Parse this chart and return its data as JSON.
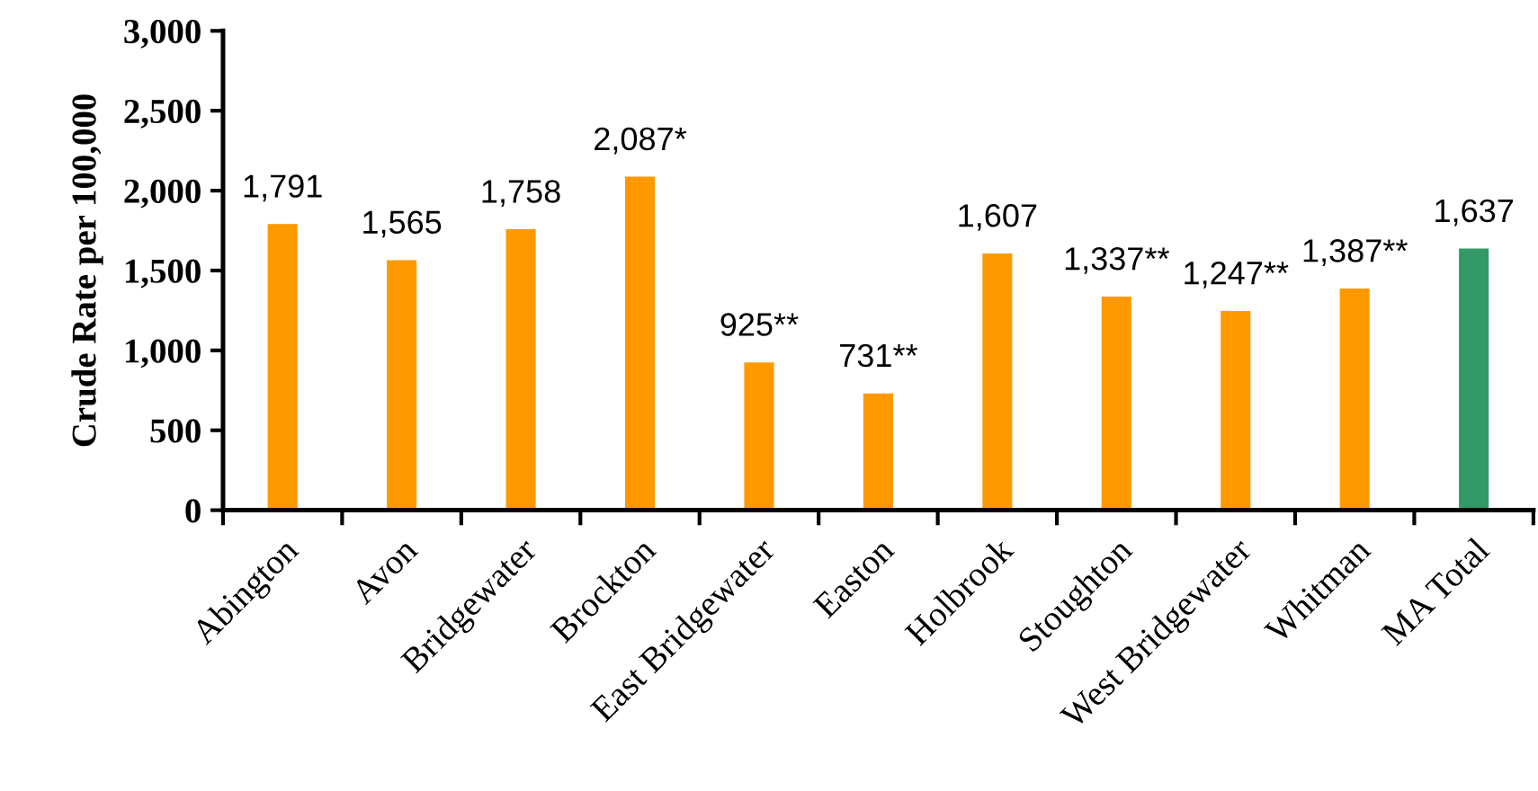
{
  "chart_data": {
    "type": "bar",
    "ylabel": "Crude Rate per 100,000",
    "categories": [
      "Abington",
      "Avon",
      "Bridgewater",
      "Brockton",
      "East Bridgewater",
      "Easton",
      "Holbrook",
      "Stoughton",
      "West Bridgewater",
      "Whitman",
      "MA Total"
    ],
    "values": [
      1791,
      1565,
      1758,
      2087,
      925,
      731,
      1607,
      1337,
      1247,
      1387,
      1637
    ],
    "colors": [
      "#ff9900",
      "#ff9900",
      "#ff9900",
      "#ff9900",
      "#ff9900",
      "#ff9900",
      "#ff9900",
      "#ff9900",
      "#ff9900",
      "#ff9900",
      "#339966"
    ],
    "value_labels": [
      "1,791",
      "1,565",
      "1,758",
      "2,087*",
      "925**",
      "731**",
      "1,607",
      "1,337**",
      "1,247**",
      "1,387**",
      "1,637"
    ],
    "ylim": [
      0,
      3000
    ],
    "yticks": [
      0,
      500,
      {
        "value": 1000,
        "label": "1,000"
      },
      {
        "value": 1500,
        "label": "1,500"
      },
      {
        "value": 2000,
        "label": "2,000"
      },
      {
        "value": 2500,
        "label": "2,500"
      },
      {
        "value": 3000,
        "label": "3,000"
      }
    ]
  }
}
